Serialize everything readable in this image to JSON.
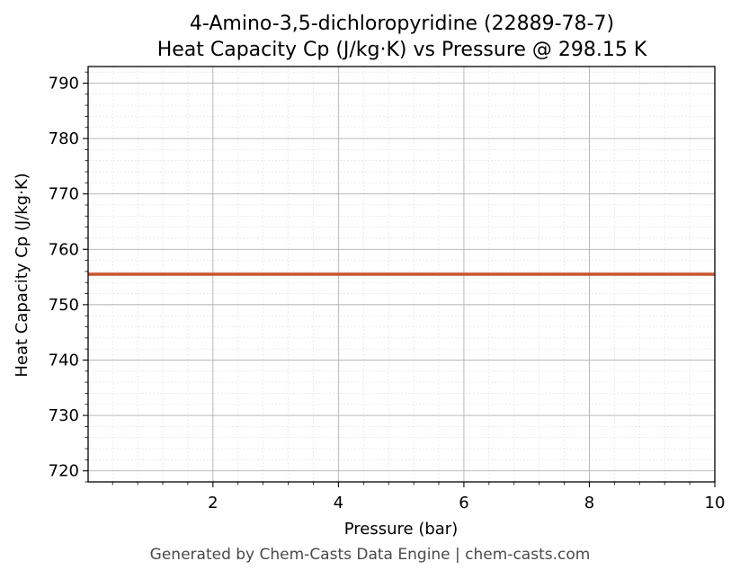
{
  "chart_data": {
    "type": "line",
    "title_line1": "4-Amino-3,5-dichloropyridine (22889-78-7)",
    "title_line2": "Heat Capacity Cp (J/kg·K) vs Pressure @ 298.15 K",
    "xlabel": "Pressure (bar)",
    "ylabel": "Heat Capacity Cp (J/kg·K)",
    "xlim": [
      0.01,
      10
    ],
    "ylim": [
      718,
      793
    ],
    "x_ticks": [
      2,
      4,
      6,
      8,
      10
    ],
    "y_ticks": [
      720,
      730,
      740,
      750,
      760,
      770,
      780,
      790
    ],
    "grid": true,
    "series": [
      {
        "color": "#c8552c",
        "x": [
          0.01,
          10
        ],
        "y": [
          755.5,
          755.5
        ]
      }
    ]
  },
  "footer": "Generated by Chem-Casts Data Engine | chem-casts.com"
}
